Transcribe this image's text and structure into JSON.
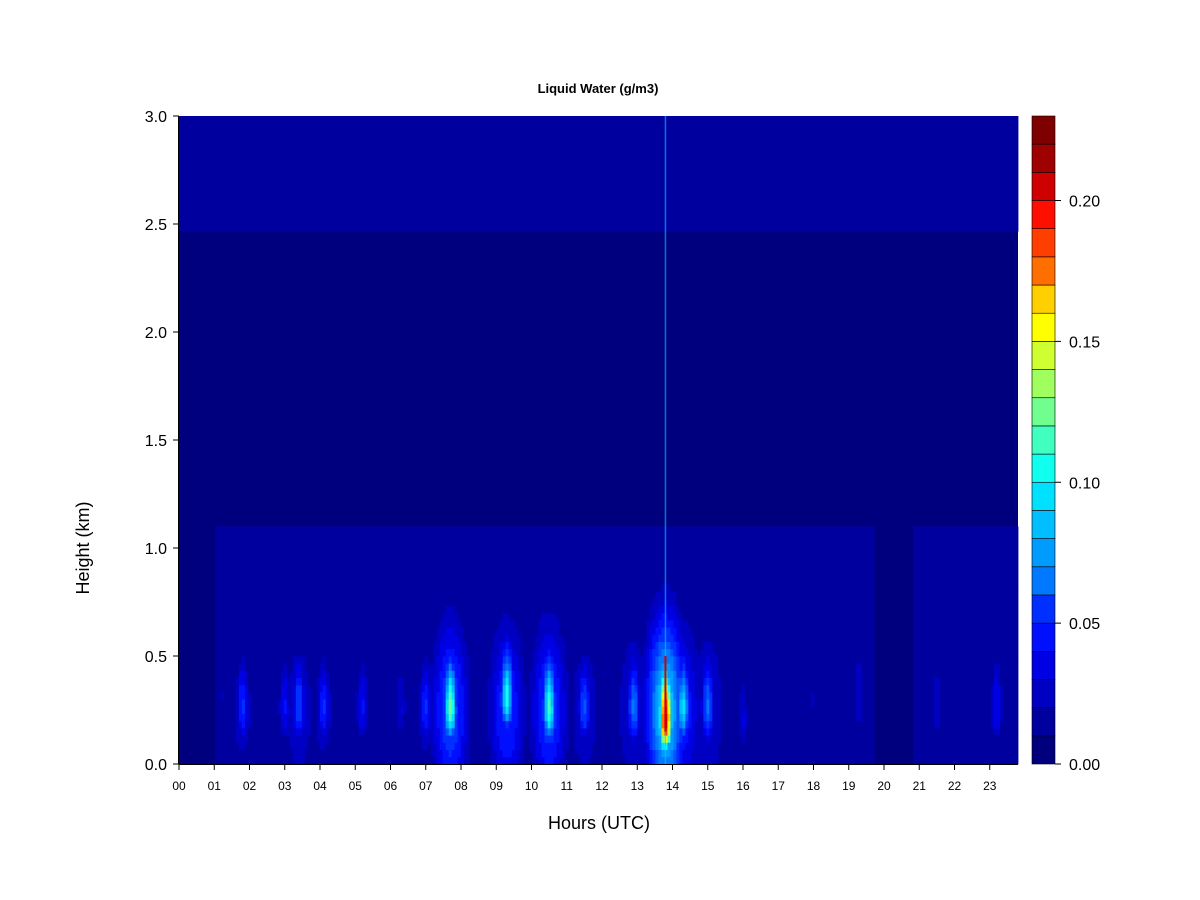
{
  "chart_data": {
    "type": "heatmap",
    "title": "Liquid Water (g/m3)",
    "xlabel": "Hours (UTC)",
    "ylabel": "Height (km)",
    "x_ticks": [
      "00",
      "01",
      "02",
      "03",
      "04",
      "05",
      "06",
      "07",
      "08",
      "09",
      "10",
      "11",
      "12",
      "13",
      "14",
      "15",
      "16",
      "17",
      "18",
      "19",
      "20",
      "21",
      "22",
      "23"
    ],
    "xlim": [
      0,
      23.8
    ],
    "y_ticks": [
      "0.0",
      "0.5",
      "1.0",
      "1.5",
      "2.0",
      "2.5",
      "3.0"
    ],
    "ylim": [
      0,
      3.0
    ],
    "colorbar": {
      "range": [
        0,
        0.23
      ],
      "ticks": [
        "0.00",
        "0.05",
        "0.10",
        "0.15",
        "0.20"
      ],
      "tick_values": [
        0,
        0.05,
        0.1,
        0.15,
        0.2
      ],
      "levels": 23,
      "colors": [
        "#00007F",
        "#00009F",
        "#0000C2",
        "#0000E5",
        "#0010FF",
        "#0030FF",
        "#0055FF",
        "#0078FF",
        "#009BFF",
        "#00BEFF",
        "#00E0FF",
        "#10FFEF",
        "#40FFBF",
        "#70FF8F",
        "#A0FF5F",
        "#CFFF30",
        "#FFFF00",
        "#FFCF00",
        "#FF9F00",
        "#FF6F00",
        "#FF3F00",
        "#FF0F00",
        "#CF0000",
        "#9F0000",
        "#7F0000"
      ]
    },
    "features": [
      {
        "hour": 1.2,
        "height_km": 0.3,
        "peak_value": 0.02
      },
      {
        "hour": 1.8,
        "height_km": 0.25,
        "peak_value": 0.05
      },
      {
        "hour": 3.0,
        "height_km": 0.25,
        "peak_value": 0.04
      },
      {
        "hour": 3.4,
        "height_km": 0.25,
        "peak_value": 0.06
      },
      {
        "hour": 4.1,
        "height_km": 0.25,
        "peak_value": 0.05
      },
      {
        "hour": 5.2,
        "height_km": 0.25,
        "peak_value": 0.04
      },
      {
        "hour": 6.3,
        "height_km": 0.25,
        "peak_value": 0.03
      },
      {
        "hour": 7.0,
        "height_km": 0.25,
        "peak_value": 0.05
      },
      {
        "hour": 7.7,
        "height_km": 0.25,
        "peak_value": 0.13
      },
      {
        "hour": 9.3,
        "height_km": 0.3,
        "peak_value": 0.11
      },
      {
        "hour": 10.5,
        "height_km": 0.25,
        "peak_value": 0.12
      },
      {
        "hour": 11.5,
        "height_km": 0.25,
        "peak_value": 0.06
      },
      {
        "hour": 12.9,
        "height_km": 0.25,
        "peak_value": 0.07
      },
      {
        "hour": 13.8,
        "height_km": 0.2,
        "peak_value": 0.22
      },
      {
        "hour": 14.3,
        "height_km": 0.25,
        "peak_value": 0.1
      },
      {
        "hour": 15.0,
        "height_km": 0.25,
        "peak_value": 0.07
      },
      {
        "hour": 16.0,
        "height_km": 0.2,
        "peak_value": 0.03
      },
      {
        "hour": 18.0,
        "height_km": 0.3,
        "peak_value": 0.02
      },
      {
        "hour": 19.3,
        "height_km": 0.3,
        "peak_value": 0.03
      },
      {
        "hour": 21.5,
        "height_km": 0.25,
        "peak_value": 0.03
      },
      {
        "hour": 23.2,
        "height_km": 0.25,
        "peak_value": 0.04
      }
    ]
  }
}
